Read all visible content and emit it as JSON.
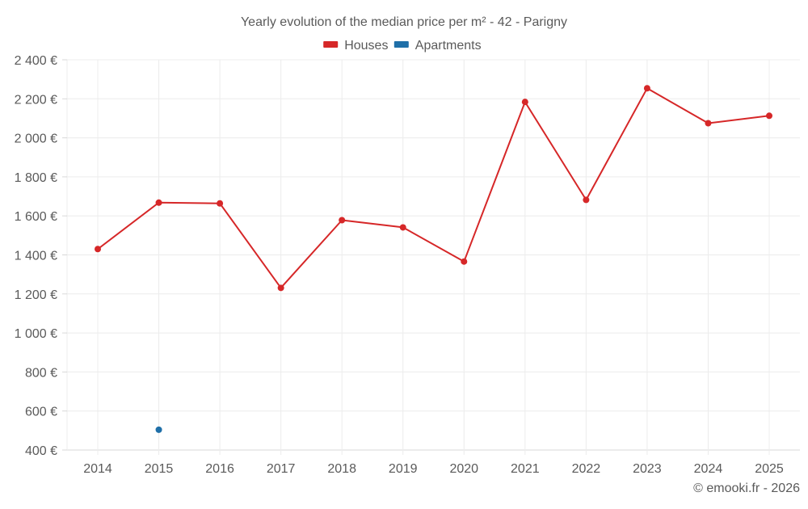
{
  "chart_data": {
    "type": "line",
    "title": "Yearly evolution of the median price per m² - 42 - Parigny",
    "xlabel": "",
    "ylabel": "",
    "categories": [
      "2014",
      "2015",
      "2016",
      "2017",
      "2018",
      "2019",
      "2020",
      "2021",
      "2022",
      "2023",
      "2024",
      "2025"
    ],
    "series": [
      {
        "name": "Houses",
        "color": "#d62728",
        "values": [
          1430,
          1668,
          1664,
          1231,
          1578,
          1541,
          1366,
          2184,
          1682,
          2254,
          2075,
          2113
        ]
      },
      {
        "name": "Apartments",
        "color": "#1f6fa8",
        "values": [
          null,
          504,
          null,
          null,
          null,
          null,
          null,
          null,
          null,
          null,
          null,
          null
        ]
      }
    ],
    "ylim": [
      400,
      2400
    ],
    "yticks": [
      400,
      600,
      800,
      1000,
      1200,
      1400,
      1600,
      1800,
      2000,
      2200,
      2400
    ],
    "ytick_labels": [
      "400 €",
      "600 €",
      "800 €",
      "1 000 €",
      "1 200 €",
      "1 400 €",
      "1 600 €",
      "1 800 €",
      "2 000 €",
      "2 200 €",
      "2 400 €"
    ],
    "grid": true,
    "legend_position": "top"
  },
  "footer": {
    "credit": "© emooki.fr - 2026"
  }
}
